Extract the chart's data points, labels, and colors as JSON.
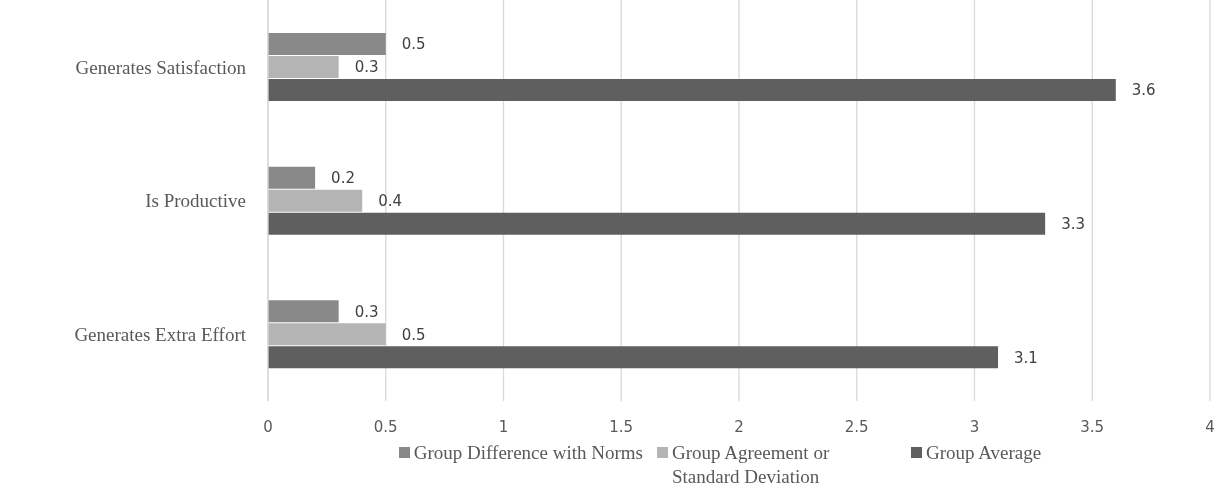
{
  "chart_data": {
    "type": "bar",
    "orientation": "horizontal",
    "categories": [
      "Generates Satisfaction",
      "Is Productive",
      "Generates Extra Effort"
    ],
    "series": [
      {
        "name": "Group Difference with Norms",
        "color": "#898989",
        "values": [
          0.5,
          0.2,
          0.3
        ]
      },
      {
        "name": "Group Agreement or Standard Deviation",
        "color": "#b4b4b4",
        "values": [
          0.3,
          0.4,
          0.5
        ]
      },
      {
        "name": "Group Average",
        "color": "#5f5f5f",
        "values": [
          3.6,
          3.3,
          3.1
        ]
      }
    ],
    "xlim": [
      0,
      4
    ],
    "xticks": [
      0,
      0.5,
      1,
      1.5,
      2,
      2.5,
      3,
      3.5,
      4
    ],
    "grid": "x",
    "legend": "bottom",
    "data_labels": true
  }
}
